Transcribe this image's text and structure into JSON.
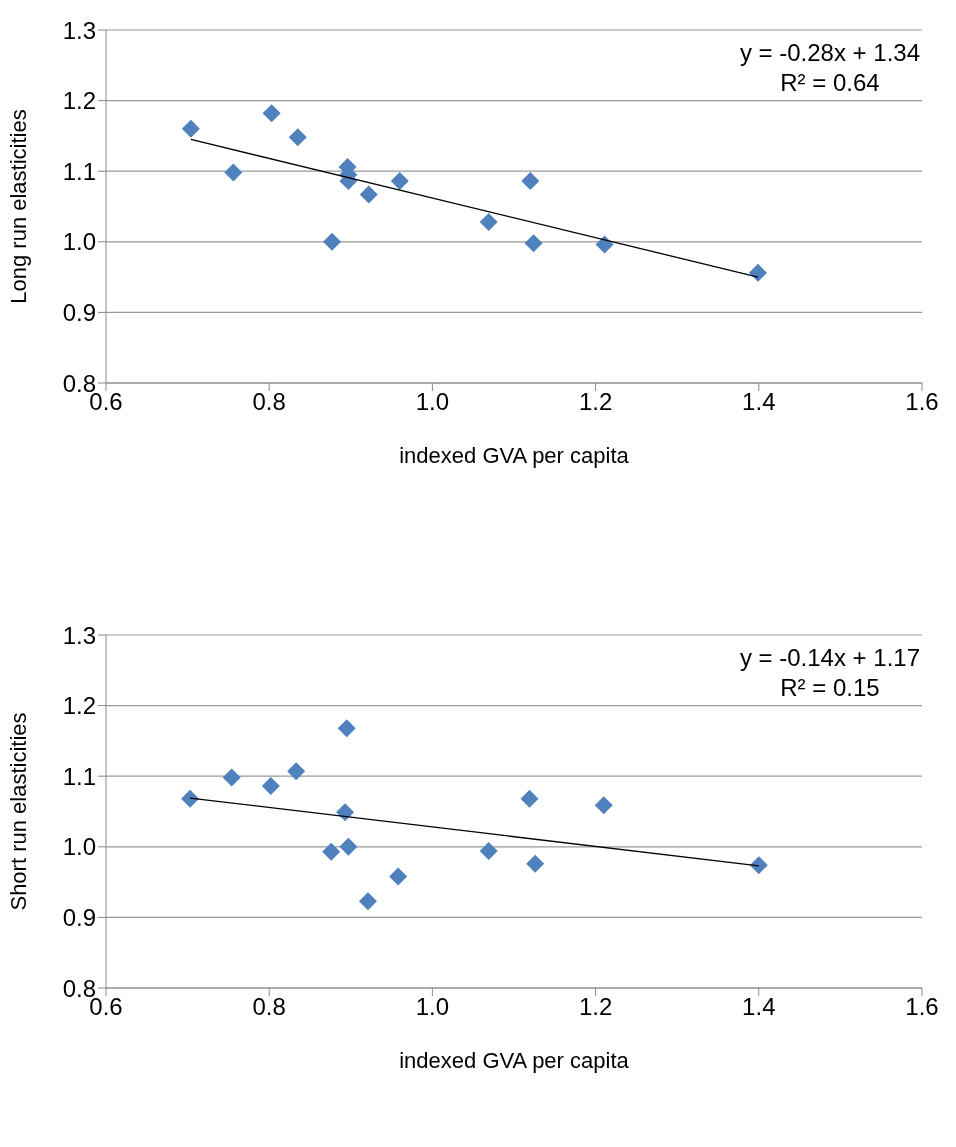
{
  "chart_data": [
    {
      "type": "scatter",
      "xlabel": "indexed  GVA per capita",
      "ylabel": "Long run elasticities",
      "marker": "diamond",
      "grid": "y",
      "xlim": [
        0.6,
        1.6
      ],
      "xticks": [
        0.6,
        0.8,
        {
          "value": 1,
          "label": "1.0"
        },
        1.2,
        1.4,
        1.6
      ],
      "ylim": [
        0.8,
        1.3
      ],
      "yticks": [
        0.8,
        0.9,
        {
          "value": 1,
          "label": "1.0"
        },
        1.1,
        1.2,
        1.3
      ],
      "annotations": [
        "y = -0.28x + 1.34",
        "R² = 0.64"
      ],
      "series": [
        {
          "color": "#4f81bd",
          "x": [
            0.704,
            0.756,
            0.803,
            0.835,
            0.877,
            0.896,
            0.897,
            0.897,
            0.922,
            0.96,
            1.069,
            1.12,
            1.124,
            1.211,
            1.399
          ],
          "values": [
            1.16,
            1.098,
            1.182,
            1.148,
            1.0,
            1.106,
            1.095,
            1.086,
            1.067,
            1.086,
            1.028,
            1.086,
            0.998,
            0.996,
            0.956
          ]
        },
        {
          "type": "line",
          "color": "#000000",
          "marker": "none",
          "line_style": "solid",
          "x": [
            0.704,
            1.399
          ],
          "values": [
            1.145,
            0.95
          ]
        }
      ]
    },
    {
      "type": "scatter",
      "xlabel": "indexed  GVA per capita",
      "ylabel": "Short run elasticities",
      "marker": "diamond",
      "grid": "y",
      "xlim": [
        0.6,
        1.6
      ],
      "xticks": [
        0.6,
        0.8,
        {
          "value": 1,
          "label": "1.0"
        },
        1.2,
        1.4,
        1.6
      ],
      "ylim": [
        0.8,
        1.3
      ],
      "yticks": [
        0.8,
        0.9,
        {
          "value": 1,
          "label": "1.0"
        },
        1.1,
        1.2,
        1.3
      ],
      "annotations": [
        "y = -0.14x + 1.17",
        "R² = 0.15"
      ],
      "series": [
        {
          "color": "#4f81bd",
          "x": [
            0.703,
            0.754,
            0.802,
            0.833,
            0.876,
            0.895,
            0.893,
            0.897,
            0.921,
            0.958,
            1.069,
            1.119,
            1.126,
            1.21,
            1.4
          ],
          "values": [
            1.068,
            1.098,
            1.086,
            1.107,
            0.993,
            1.168,
            1.049,
            1.0,
            0.923,
            0.958,
            0.994,
            1.068,
            0.976,
            1.059,
            0.974
          ]
        },
        {
          "type": "line",
          "color": "#000000",
          "marker": "none",
          "line_style": "solid",
          "x": [
            0.703,
            1.4
          ],
          "values": [
            1.069,
            0.973
          ]
        }
      ]
    }
  ]
}
